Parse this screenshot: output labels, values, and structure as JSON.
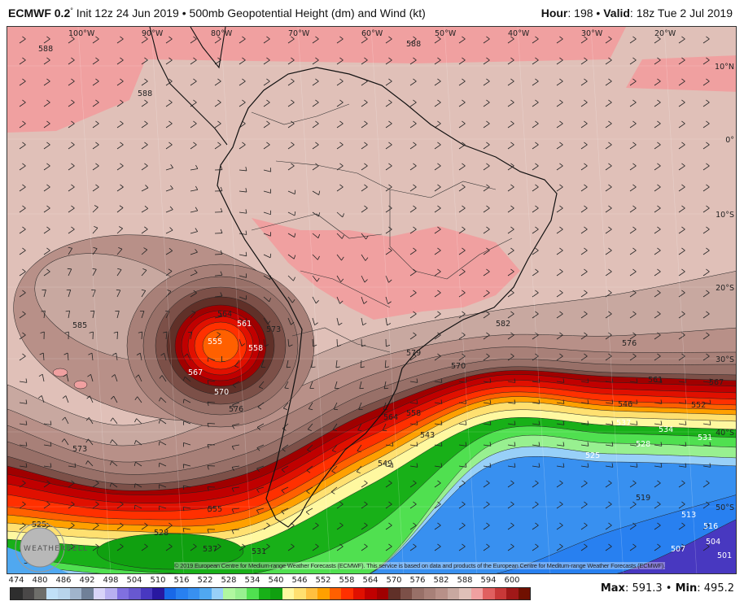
{
  "header": {
    "model": "ECMWF 0.2",
    "degree": "°",
    "init": "Init 12z 24 Jun 2019",
    "product": "500mb Geopotential Height (dm) and Wind (kt)",
    "hour_label": "Hour",
    "hour_value": "198",
    "valid_label": "Valid",
    "valid_value": "18z Tue 2 Jul 2019",
    "separator": "•"
  },
  "map": {
    "longitude_labels": [
      "100°W",
      "90°W",
      "80°W",
      "70°W",
      "60°W",
      "50°W",
      "40°W",
      "30°W",
      "20°W"
    ],
    "latitude_labels": [
      "10°N",
      "0°",
      "10°S",
      "20°S",
      "30°S",
      "40°S",
      "50°S"
    ],
    "contour_labels": [
      "588",
      "588",
      "585",
      "588",
      "564",
      "561",
      "558",
      "555",
      "567",
      "570",
      "573",
      "576",
      "582",
      "579",
      "570",
      "576",
      "561",
      "567",
      "564",
      "558",
      "552",
      "546",
      "537",
      "534",
      "531",
      "528",
      "525",
      "519",
      "513",
      "516",
      "555",
      "573",
      "537",
      "543",
      "549",
      "507",
      "504",
      "501",
      "525",
      "519",
      "528",
      "531"
    ],
    "low_center": "L"
  },
  "logo": {
    "text": "WEATHERBELL"
  },
  "attribution": "© 2019 European Centre for Medium-range Weather Forecasts (ECMWF). This service is based on data and products of the European Centre for Meditum-range Weather Forecasts (ECMWF).",
  "colorbar": {
    "labels": [
      "474",
      "480",
      "486",
      "492",
      "498",
      "504",
      "510",
      "516",
      "522",
      "528",
      "534",
      "540",
      "546",
      "552",
      "558",
      "564",
      "570",
      "576",
      "582",
      "588",
      "594",
      "600"
    ],
    "colors": [
      "#2e2e2e",
      "#4a4848",
      "#6e6e6a",
      "#c0e0f8",
      "#b8d4ec",
      "#a0b4cc",
      "#708098",
      "#d8d4f8",
      "#b8b0f0",
      "#8070e0",
      "#6858d0",
      "#4838c0",
      "#2818a0",
      "#1868e8",
      "#2880f0",
      "#3890f0",
      "#50a8f0",
      "#98d0f8",
      "#b0f8a0",
      "#98f090",
      "#50e050",
      "#18b018",
      "#10a010",
      "#fff8a0",
      "#ffe070",
      "#ffc040",
      "#ffa000",
      "#ff6000",
      "#ff3000",
      "#e01000",
      "#c00000",
      "#a00000",
      "#603028",
      "#7c5048",
      "#987068",
      "#a88078",
      "#b89088",
      "#c8a8a0",
      "#e0c0b8",
      "#f0a0a0",
      "#e06060",
      "#c83838",
      "#a01818",
      "#701000"
    ]
  },
  "stats": {
    "max_label": "Max",
    "max_value": "591.3",
    "min_label": "Min",
    "min_value": "495.2"
  }
}
